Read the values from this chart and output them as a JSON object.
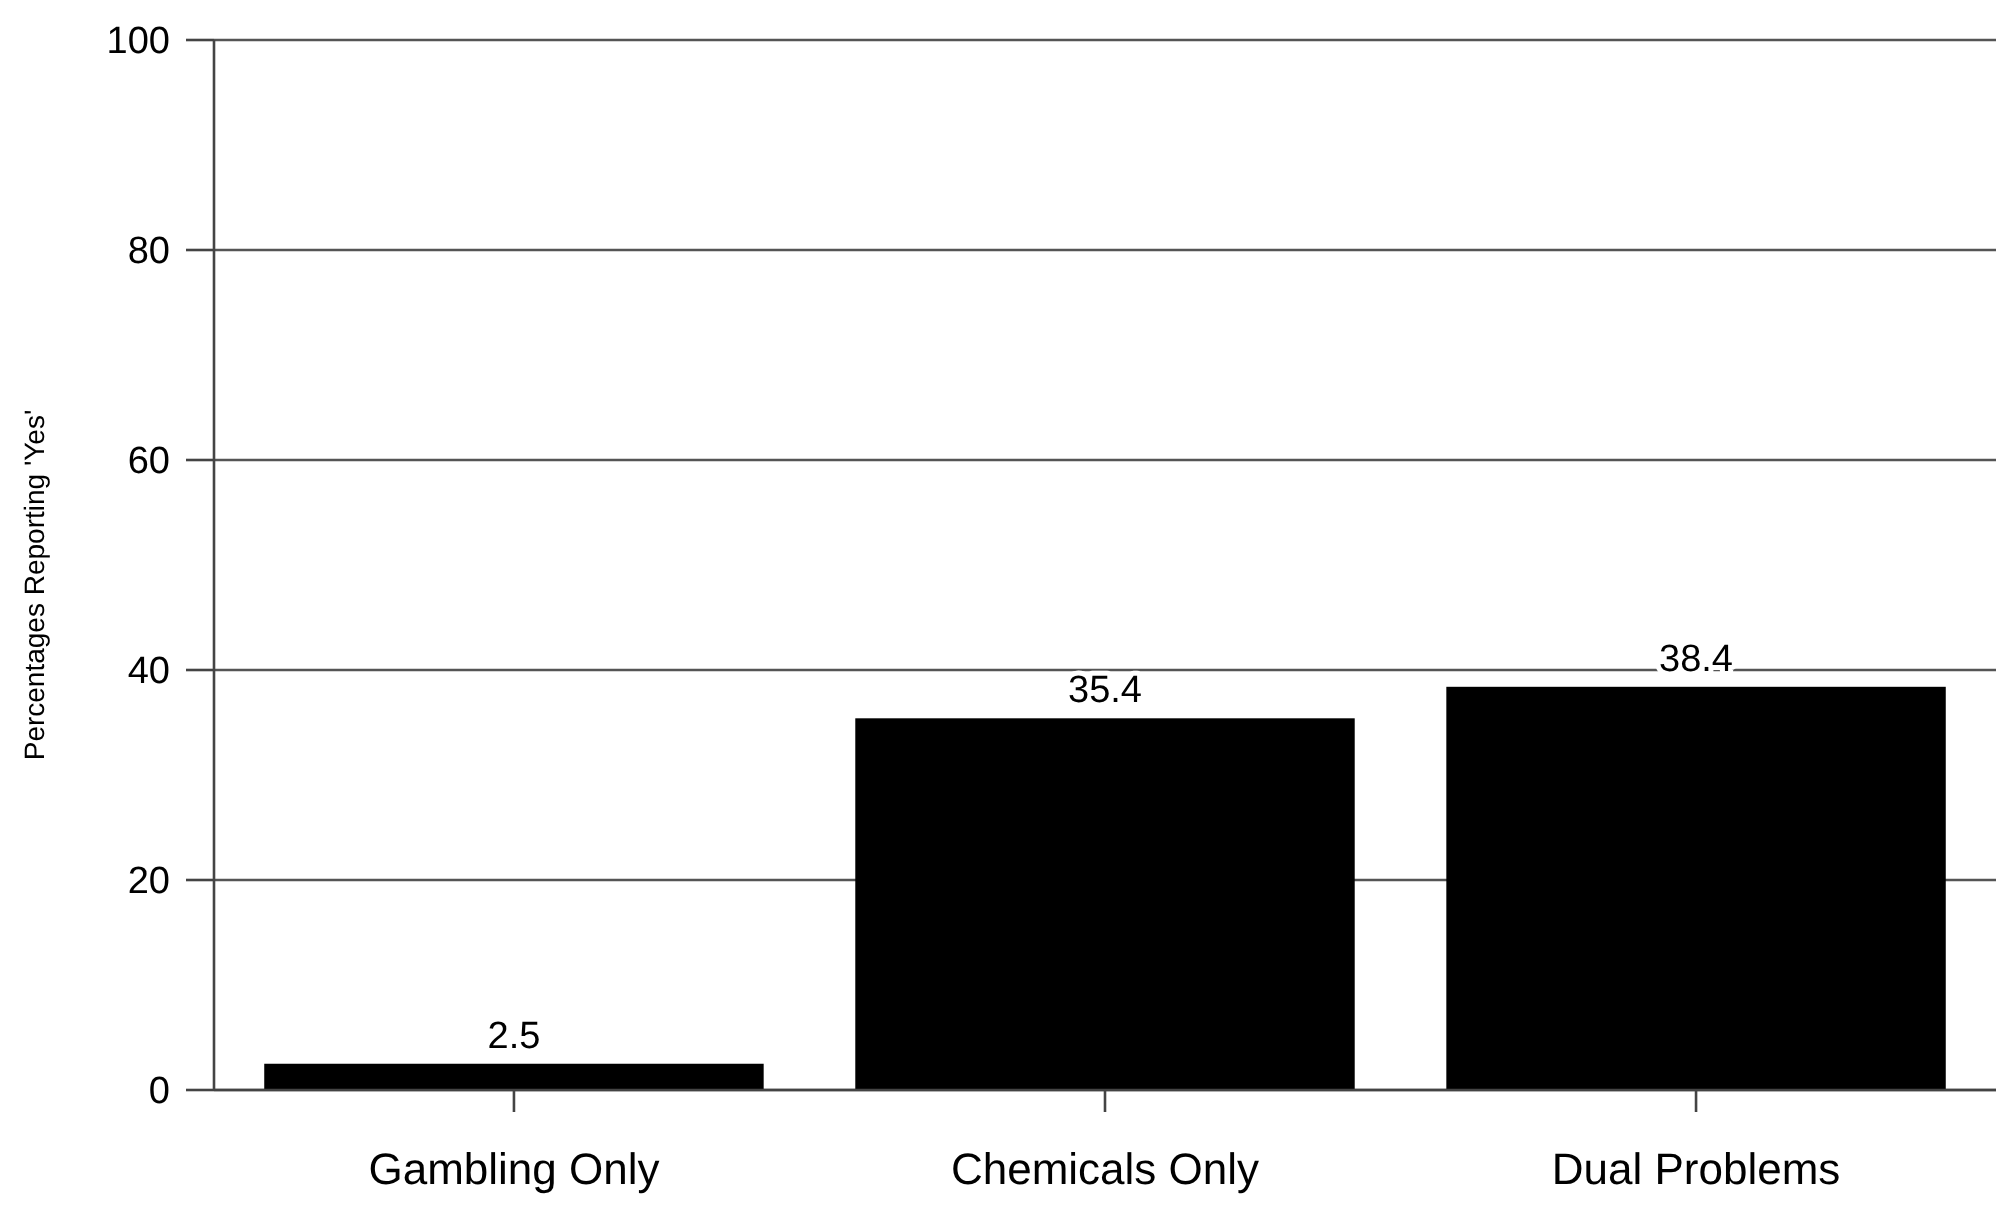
{
  "chart_data": {
    "type": "bar",
    "ylabel": "Percentages Reporting 'Yes'",
    "categories": [
      "Gambling Only",
      "Chemicals Only",
      "Dual Problems"
    ],
    "values": [
      2.5,
      35.4,
      38.4
    ],
    "color": "#000000",
    "ylim": [
      0,
      100
    ],
    "yticks": [
      0,
      20,
      40,
      60,
      80,
      100
    ],
    "grid": "y",
    "data_labels": true
  }
}
